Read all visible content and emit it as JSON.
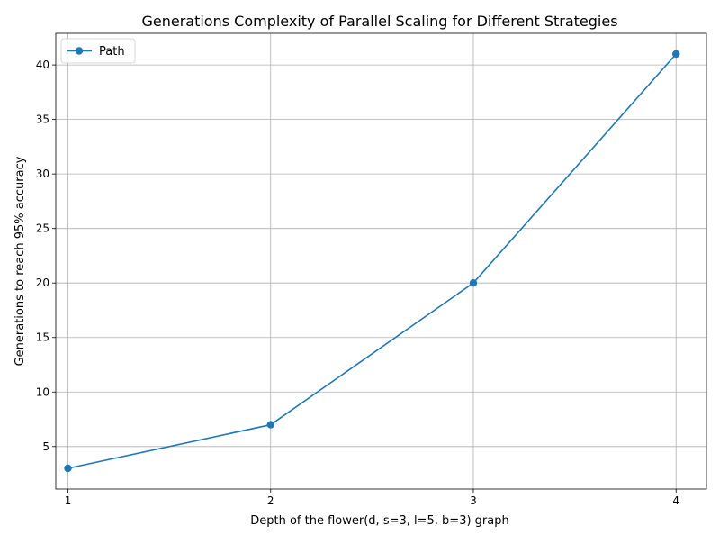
{
  "chart_data": {
    "type": "line",
    "title": "Generations Complexity of Parallel Scaling for Different Strategies",
    "xlabel": "Depth of the flower(d, s=3, l=5, b=3) graph",
    "ylabel": "Generations to reach 95% accuracy",
    "x": [
      1,
      2,
      3,
      4
    ],
    "x_tick_labels": [
      "1",
      "2",
      "3",
      "4"
    ],
    "y_ticks": [
      5,
      10,
      15,
      20,
      25,
      30,
      35,
      40
    ],
    "xlim": [
      0.94,
      4.15
    ],
    "ylim": [
      1.1,
      42.9
    ],
    "grid": true,
    "legend_position": "top-left",
    "series": [
      {
        "name": "Path",
        "values": [
          3,
          7,
          20,
          41
        ],
        "color": "#1f77b4",
        "marker": "circle"
      }
    ]
  }
}
